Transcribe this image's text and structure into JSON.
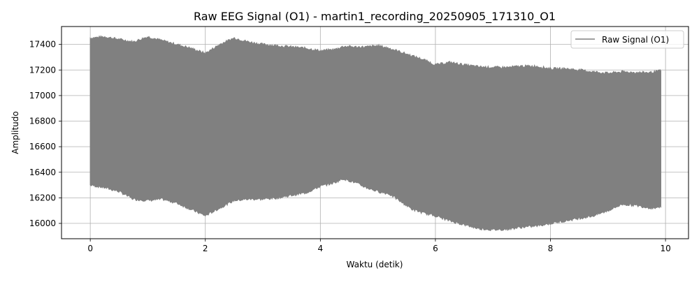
{
  "chart_data": {
    "type": "area",
    "title": "Raw EEG Signal (O1) - martin1_recording_20250905_171310_O1",
    "xlabel": "Waktu (detik)",
    "ylabel": "Amplitudo",
    "xlim": [
      -0.5,
      10.4
    ],
    "ylim": [
      15880,
      17540
    ],
    "xticks": [
      0,
      2,
      4,
      6,
      8,
      10
    ],
    "yticks": [
      16000,
      16200,
      16400,
      16600,
      16800,
      17000,
      17200,
      17400
    ],
    "grid": true,
    "legend_position": "top-right",
    "series": [
      {
        "name": "Raw Signal (O1)",
        "color": "#808080",
        "x": [
          0,
          0.25,
          0.5,
          0.75,
          1.0,
          1.25,
          1.5,
          1.75,
          2.0,
          2.25,
          2.5,
          2.75,
          3.0,
          3.25,
          3.5,
          3.75,
          4.0,
          4.25,
          4.4,
          4.6,
          4.8,
          5.0,
          5.2,
          5.4,
          5.6,
          5.8,
          6.0,
          6.25,
          6.5,
          6.75,
          7.0,
          7.25,
          7.5,
          7.75,
          8.0,
          8.25,
          8.5,
          8.75,
          9.0,
          9.25,
          9.5,
          9.75,
          9.92
        ],
        "upper": [
          17450,
          17460,
          17440,
          17420,
          17460,
          17430,
          17400,
          17370,
          17330,
          17400,
          17450,
          17420,
          17400,
          17390,
          17380,
          17370,
          17350,
          17360,
          17385,
          17380,
          17380,
          17390,
          17370,
          17340,
          17310,
          17280,
          17240,
          17260,
          17240,
          17225,
          17220,
          17220,
          17230,
          17230,
          17210,
          17210,
          17200,
          17185,
          17175,
          17185,
          17180,
          17180,
          17195
        ],
        "lower": [
          16300,
          16280,
          16250,
          16190,
          16180,
          16190,
          16160,
          16110,
          16060,
          16120,
          16180,
          16190,
          16190,
          16200,
          16220,
          16240,
          16290,
          16320,
          16350,
          16320,
          16280,
          16250,
          16230,
          16170,
          16110,
          16080,
          16060,
          16020,
          15990,
          15960,
          15950,
          15955,
          15970,
          15980,
          16000,
          16020,
          16040,
          16060,
          16100,
          16150,
          16140,
          16120,
          16130
        ]
      }
    ]
  }
}
